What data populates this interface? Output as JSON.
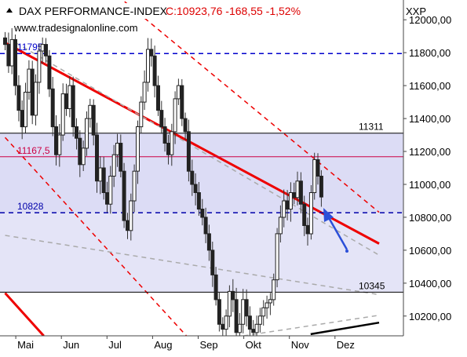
{
  "chart_data": {
    "type": "candlestick",
    "title": "DAX PERFORMANCE-INDEX",
    "quote": "C:10923,76 -168,55 -1,52%",
    "axis_label": "XXP",
    "watermark": "www.tradesignalonline.com",
    "ylim": [
      10080,
      12120
    ],
    "y_ticks": [
      {
        "value": 12000,
        "label": "12000,00"
      },
      {
        "value": 11800,
        "label": "11800,00"
      },
      {
        "value": 11600,
        "label": "11600,00"
      },
      {
        "value": 11400,
        "label": "11400,00"
      },
      {
        "value": 11200,
        "label": "11200,00"
      },
      {
        "value": 11000,
        "label": "11000,00"
      },
      {
        "value": 10800,
        "label": "10800,00"
      },
      {
        "value": 10600,
        "label": "10600,00"
      },
      {
        "value": 10400,
        "label": "10400,00"
      },
      {
        "value": 10200,
        "label": "10200,00"
      }
    ],
    "x_ticks": [
      "Mai",
      "Jun",
      "Jul",
      "Aug",
      "Sep",
      "Okt",
      "Nov",
      "Dez"
    ],
    "levels": [
      {
        "value": 11311,
        "label": "11311",
        "style": "solid",
        "color": "#000000"
      },
      {
        "value": 11795,
        "label": "11795",
        "style": "dashed",
        "color": "#0000cc"
      },
      {
        "value": 11167.5,
        "label": "11167,5",
        "style": "solid",
        "color": "#cc0044"
      },
      {
        "value": 10828,
        "label": "10828",
        "style": "dashed",
        "color": "#0000aa"
      },
      {
        "value": 10345,
        "label": "10345",
        "style": "solid",
        "color": "#000000"
      }
    ],
    "trend_lines": [
      {
        "name": "downtrend-main",
        "from": [
          "Apr-24",
          11860
        ],
        "to": [
          "Dez-31",
          10640
        ],
        "color": "#ee0000",
        "style": "solid"
      },
      {
        "name": "downtrend-upper",
        "from": [
          "Jul-13",
          12110
        ],
        "to": [
          "Dez-31",
          10830
        ],
        "color": "#ee0000",
        "style": "dashed"
      },
      {
        "name": "downtrend-lower",
        "from": [
          "Apr-24",
          11285
        ],
        "to": [
          "Aug-24",
          10080
        ],
        "color": "#ee0000",
        "style": "dashed"
      },
      {
        "name": "old-channel",
        "from": [
          "Apr-24",
          10340
        ],
        "to": [
          "Mai-20",
          10080
        ],
        "color": "#ee0000",
        "style": "solid"
      },
      {
        "name": "grey-upper",
        "from": [
          "Mai-01",
          11860
        ],
        "to": [
          "Dez-31",
          10570
        ],
        "color": "#aaaaaa",
        "style": "dashed"
      },
      {
        "name": "grey-middle",
        "from": [
          "Apr-24",
          10690
        ],
        "to": [
          "Dez-31",
          10330
        ],
        "color": "#aaaaaa",
        "style": "dashed"
      },
      {
        "name": "grey-lower",
        "from": [
          "Okt-01",
          10080
        ],
        "to": [
          "Dez-31",
          10205
        ],
        "color": "#aaaaaa",
        "style": "dashed"
      },
      {
        "name": "black-support",
        "from": [
          "Nov-15",
          10090
        ],
        "to": [
          "Dez-31",
          10160
        ],
        "color": "#000000",
        "style": "solid"
      }
    ],
    "price_path": [
      11850,
      11720,
      11880,
      11600,
      11450,
      11350,
      11560,
      11700,
      11420,
      11620,
      11810,
      11850,
      11780,
      11580,
      11350,
      11180,
      11300,
      11550,
      11460,
      11600,
      11350,
      11280,
      11120,
      11220,
      11400,
      11480,
      11300,
      11020,
      11100,
      10950,
      10880,
      11050,
      11180,
      11250,
      11080,
      10780,
      10720,
      10900,
      11080,
      11350,
      11500,
      11620,
      11820,
      11780,
      11600,
      11450,
      11350,
      11250,
      11180,
      11320,
      11520,
      11600,
      11400,
      11320,
      11080,
      11000,
      10950,
      10850,
      10800,
      10700,
      10600,
      10450,
      10300,
      10150,
      10120,
      10200,
      10350,
      10300,
      10100,
      10150,
      10300,
      10200,
      10120,
      10100,
      10150,
      10200,
      10250,
      10280,
      10300,
      10420,
      10700,
      10800,
      10900,
      10850,
      10950,
      10920,
      11020,
      10880,
      10750,
      10700,
      10950,
      11150,
      11050,
      10923
    ]
  }
}
